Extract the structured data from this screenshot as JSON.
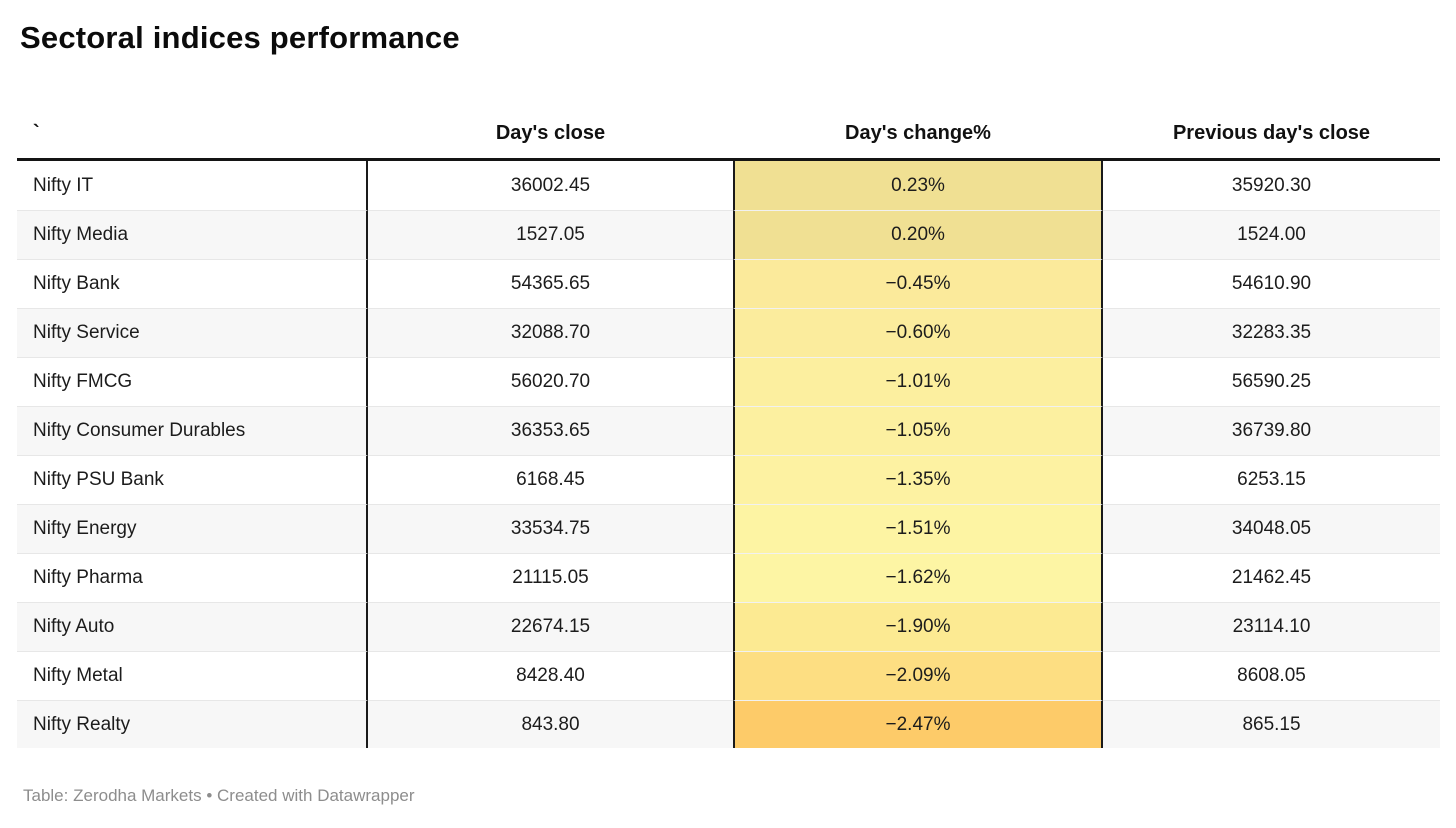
{
  "title": "Sectoral indices performance",
  "table": {
    "headers": [
      "`",
      "Day's close",
      "Day's change%",
      "Previous day's close"
    ],
    "rows": [
      {
        "name": "Nifty IT",
        "close": "36002.45",
        "change": "0.23%",
        "prev": "35920.30",
        "heat": "#F0E093"
      },
      {
        "name": "Nifty Media",
        "close": "1527.05",
        "change": "0.20%",
        "prev": "1524.00",
        "heat": "#F0E093"
      },
      {
        "name": "Nifty Bank",
        "close": "54365.65",
        "change": "−0.45%",
        "prev": "54610.90",
        "heat": "#FBEA9B"
      },
      {
        "name": "Nifty Service",
        "close": "32088.70",
        "change": "−0.60%",
        "prev": "32283.35",
        "heat": "#FBEC9D"
      },
      {
        "name": "Nifty FMCG",
        "close": "56020.70",
        "change": "−1.01%",
        "prev": "56590.25",
        "heat": "#FCEF9F"
      },
      {
        "name": "Nifty Consumer Durables",
        "close": "36353.65",
        "change": "−1.05%",
        "prev": "36739.80",
        "heat": "#FCF0A0"
      },
      {
        "name": "Nifty PSU Bank",
        "close": "6168.45",
        "change": "−1.35%",
        "prev": "6253.15",
        "heat": "#FDF2A2"
      },
      {
        "name": "Nifty Energy",
        "close": "33534.75",
        "change": "−1.51%",
        "prev": "34048.05",
        "heat": "#FDF4A3"
      },
      {
        "name": "Nifty Pharma",
        "close": "21115.05",
        "change": "−1.62%",
        "prev": "21462.45",
        "heat": "#FDF5A4"
      },
      {
        "name": "Nifty Auto",
        "close": "22674.15",
        "change": "−1.90%",
        "prev": "23114.10",
        "heat": "#FCEA92"
      },
      {
        "name": "Nifty Metal",
        "close": "8428.40",
        "change": "−2.09%",
        "prev": "8608.05",
        "heat": "#FDDE82"
      },
      {
        "name": "Nifty Realty",
        "close": "843.80",
        "change": "−2.47%",
        "prev": "865.15",
        "heat": "#FDCB69"
      }
    ]
  },
  "footer": {
    "label": "Table:",
    "source": "Zerodha Markets",
    "separator": "•",
    "credit": "Created with Datawrapper"
  },
  "colors": {
    "header_border": "#141414",
    "column_border": "#1a1a1a",
    "row_stripe": "#f7f7f7",
    "row_divider": "#e7e7e7",
    "footer_text": "#8d8d8d",
    "heat_positive": "#F0E093",
    "heat_light_mid": "#FDF5A4",
    "heat_negative_max": "#FDCB69"
  },
  "chart_data": {
    "type": "table",
    "title": "Sectoral indices performance",
    "columns": [
      "`",
      "Day's close",
      "Day's change%",
      "Previous day's close"
    ],
    "rows": [
      [
        "Nifty IT",
        36002.45,
        0.23,
        35920.3
      ],
      [
        "Nifty Media",
        1527.05,
        0.2,
        1524.0
      ],
      [
        "Nifty Bank",
        54365.65,
        -0.45,
        54610.9
      ],
      [
        "Nifty Service",
        32088.7,
        -0.6,
        32283.35
      ],
      [
        "Nifty FMCG",
        56020.7,
        -1.01,
        56590.25
      ],
      [
        "Nifty Consumer Durables",
        36353.65,
        -1.05,
        36739.8
      ],
      [
        "Nifty PSU Bank",
        6168.45,
        -1.35,
        6253.15
      ],
      [
        "Nifty Energy",
        33534.75,
        -1.51,
        34048.05
      ],
      [
        "Nifty Pharma",
        21115.05,
        -1.62,
        21462.45
      ],
      [
        "Nifty Auto",
        22674.15,
        -1.9,
        23114.1
      ],
      [
        "Nifty Metal",
        8428.4,
        -2.09,
        8608.05
      ],
      [
        "Nifty Realty",
        843.8,
        -2.47,
        865.15
      ]
    ],
    "heatmap_column": "Day's change%",
    "source": "Zerodha Markets",
    "tool": "Datawrapper"
  }
}
